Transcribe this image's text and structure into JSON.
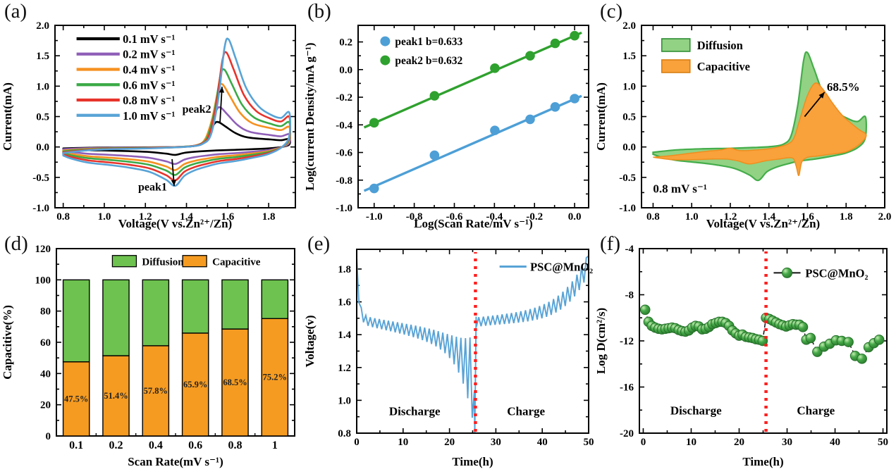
{
  "figure": {
    "background": "#ffffff",
    "description": "Six-panel electrochemistry figure"
  },
  "chart_data": [
    {
      "panel_label": "(a)",
      "type": "line",
      "subtype": "cyclic-voltammetry",
      "xlabel": "Voltage(V vs.Zn²⁺/Zn)",
      "ylabel": "Current(mA)",
      "xlim": [
        0.76,
        1.93
      ],
      "ylim": [
        -1.0,
        2.0
      ],
      "xticks": {
        "values": [
          0.8,
          1.0,
          1.2,
          1.4,
          1.6,
          1.8
        ],
        "labels": [
          "0.8",
          "1.0",
          "1.2",
          "1.4",
          "1.6",
          "1.8"
        ]
      },
      "yticks": {
        "values": [
          -1.0,
          -0.5,
          0.0,
          0.5,
          1.0,
          1.5,
          2.0
        ],
        "labels": [
          "-1.0",
          "-0.5",
          "0.0",
          "0.5",
          "1.0",
          "1.5",
          "2.0"
        ]
      },
      "series": [
        {
          "label": "0.1 mV s⁻¹",
          "color": "#000000",
          "anodic_peak_mA": 0.41,
          "cathodic_peak_mA": -0.13,
          "peak_voltage": 1.555
        },
        {
          "label": "0.2 mV s⁻¹",
          "color": "#8f5fb8",
          "anodic_peak_mA": 0.65,
          "cathodic_peak_mA": -0.28,
          "peak_voltage": 1.565
        },
        {
          "label": "0.4 mV s⁻¹",
          "color": "#f59120",
          "anodic_peak_mA": 1.03,
          "cathodic_peak_mA": -0.38,
          "peak_voltage": 1.575
        },
        {
          "label": "0.6 mV s⁻¹",
          "color": "#3aaa46",
          "anodic_peak_mA": 1.27,
          "cathodic_peak_mA": -0.46,
          "peak_voltage": 1.585
        },
        {
          "label": "0.8 mV s⁻¹",
          "color": "#e7332b",
          "anodic_peak_mA": 1.55,
          "cathodic_peak_mA": -0.55,
          "peak_voltage": 1.595
        },
        {
          "label": "1.0 mV s⁻¹",
          "color": "#58a3d6",
          "anodic_peak_mA": 1.77,
          "cathodic_peak_mA": -0.64,
          "peak_voltage": 1.605
        }
      ],
      "annotations": [
        {
          "text": "peak2",
          "x": 1.45,
          "y": 0.62
        },
        {
          "text": "peak1",
          "x": 1.235,
          "y": -0.66
        }
      ]
    },
    {
      "panel_label": "(b)",
      "type": "scatter",
      "xlabel": "Log(Scan Rate/mV s⁻¹)",
      "ylabel": "Log(current Density/mA g⁻¹)",
      "xlim": [
        -1.08,
        0.07
      ],
      "ylim": [
        -1.0,
        0.32
      ],
      "xticks": {
        "values": [
          -1.0,
          -0.8,
          -0.6,
          -0.4,
          -0.2,
          0.0
        ],
        "labels": [
          "-1.0",
          "-0.8",
          "-0.6",
          "-0.4",
          "-0.2",
          "0.0"
        ]
      },
      "yticks": {
        "values": [
          -1.0,
          -0.8,
          -0.6,
          -0.4,
          -0.2,
          0.0,
          0.2
        ],
        "labels": [
          "-1.0",
          "-0.8",
          "-0.6",
          "-0.4",
          "-0.2",
          "0.0",
          "0.2"
        ]
      },
      "series": [
        {
          "label": "peak1 b=0.633",
          "color": "#4d9fd6",
          "x": [
            -1.0,
            -0.699,
            -0.398,
            -0.222,
            -0.097,
            0.0
          ],
          "y": [
            -0.86,
            -0.62,
            -0.44,
            -0.36,
            -0.27,
            -0.21
          ],
          "fit": {
            "slope": 0.633,
            "intercept": -0.213
          }
        },
        {
          "label": "peak2 b=0.632",
          "color": "#2fa12e",
          "x": [
            -1.0,
            -0.699,
            -0.398,
            -0.222,
            -0.097,
            0.0
          ],
          "y": [
            -0.385,
            -0.19,
            0.01,
            0.1,
            0.19,
            0.245
          ],
          "fit": {
            "slope": 0.632,
            "intercept": 0.245
          }
        }
      ]
    },
    {
      "panel_label": "(c)",
      "type": "area",
      "subtype": "capacitive-contribution-cv",
      "xlabel": "Voltage(V vs.Zn²⁺/Zn)",
      "ylabel": "Current(mA)",
      "xlim": [
        0.74,
        2.0
      ],
      "ylim": [
        -1.0,
        2.0
      ],
      "xticks": {
        "values": [
          0.8,
          1.0,
          1.2,
          1.4,
          1.6,
          1.8,
          2.0
        ],
        "labels": [
          "0.8",
          "1.0",
          "1.2",
          "1.4",
          "1.6",
          "1.8",
          "2.0"
        ]
      },
      "yticks": {
        "values": [
          -1.0,
          -0.5,
          0.0,
          0.5,
          1.0,
          1.5,
          2.0
        ],
        "labels": [
          "-1.0",
          "-0.5",
          "0.0",
          "0.5",
          "1.0",
          "1.5",
          "2.0"
        ]
      },
      "legend": [
        {
          "label": "Diffusion",
          "fill": "#92d284",
          "stroke": "#2f8f35"
        },
        {
          "label": "Capacitive",
          "fill": "#f9a13b",
          "stroke": "#d97f12"
        }
      ],
      "scan_rate_label": "0.8 mV s⁻¹",
      "annotation": {
        "text": "68.5%",
        "x": 1.7,
        "y": 0.98
      },
      "total_anodic_peak_mA": 1.55,
      "total_cathodic_peak_mA": -0.55,
      "capacitive_anodic_peak_mA": 1.05
    },
    {
      "panel_label": "(d)",
      "type": "bar",
      "subtype": "stacked-percent",
      "xlabel": "Scan Rate(mV s⁻¹)",
      "ylabel": "Capacitive(%)",
      "ylim": [
        0,
        120
      ],
      "yticks": {
        "values": [
          0,
          20,
          40,
          60,
          80,
          100,
          120
        ],
        "labels": [
          "0",
          "20",
          "40",
          "60",
          "80",
          "100",
          "120"
        ]
      },
      "categories": [
        "0.1",
        "0.2",
        "0.4",
        "0.6",
        "0.8",
        "1"
      ],
      "series": [
        {
          "name": "Capacitive",
          "color": "#f59b21",
          "values": [
            47.5,
            51.4,
            57.8,
            65.9,
            68.5,
            75.2
          ]
        },
        {
          "name": "Diffusion",
          "color": "#6ec24f",
          "values": [
            52.5,
            48.6,
            42.2,
            34.1,
            31.5,
            24.8
          ]
        }
      ],
      "bar_labels": [
        "47.5%",
        "51.4%",
        "57.8%",
        "65.9%",
        "68.5%",
        "75.2%"
      ],
      "legend": [
        {
          "label": "Diffusion",
          "color": "#6ec24f"
        },
        {
          "label": "Capacitive",
          "color": "#f59b21"
        }
      ]
    },
    {
      "panel_label": "(e)",
      "type": "line",
      "subtype": "GITT-voltage-profile",
      "xlabel": "Time(h)",
      "ylabel": "Voltage(v)",
      "xlim": [
        0,
        50
      ],
      "ylim": [
        0.8,
        1.92
      ],
      "xticks": {
        "values": [
          0,
          10,
          20,
          30,
          40,
          50
        ],
        "labels": [
          "0",
          "10",
          "20",
          "30",
          "40",
          "50"
        ]
      },
      "yticks": {
        "values": [
          0.8,
          1.0,
          1.2,
          1.4,
          1.6,
          1.8
        ],
        "labels": [
          "0.8",
          "1.0",
          "1.2",
          "1.4",
          "1.6",
          "1.8"
        ]
      },
      "legend_label": "PSC@MnO₂",
      "line_color": "#58a3d6",
      "divider": {
        "x": 25.6,
        "color": "#ff1f1f"
      },
      "region_labels": [
        {
          "text": "Discharge",
          "x": 12.5,
          "y": 0.935
        },
        {
          "text": "Charge",
          "x": 36.5,
          "y": 0.935
        }
      ],
      "gitt": {
        "discharge": {
          "t_start": 0,
          "t_end": 25.4,
          "v_start": 1.87,
          "v_end": 0.8,
          "pulses": 26
        },
        "charge": {
          "t_start": 25.8,
          "t_end": 50,
          "v_start": 1.46,
          "v_end": 1.9,
          "pulses": 24
        }
      }
    },
    {
      "panel_label": "(f)",
      "type": "scatter",
      "subtype": "diffusion-coefficient",
      "xlabel": "Time(h)",
      "ylabel": "Log D(cm²/s)",
      "xlim": [
        -0.8,
        50.8
      ],
      "ylim": [
        -20,
        -4
      ],
      "xticks": {
        "values": [
          0,
          10,
          20,
          30,
          40,
          50
        ],
        "labels": [
          "0",
          "10",
          "20",
          "30",
          "40",
          "50"
        ]
      },
      "yticks": {
        "values": [
          -4,
          -8,
          -12,
          -16,
          -20
        ],
        "labels": [
          "-4",
          "-8",
          "-12",
          "-16",
          "-20"
        ]
      },
      "legend_label": "PSC@MnO₂",
      "marker_color": "#3fa23f",
      "divider": {
        "x": 25.6,
        "color": "#ff1f1f"
      },
      "region_labels": [
        {
          "text": "Discharge",
          "x": 11,
          "y": -18
        },
        {
          "text": "Charge",
          "x": 36,
          "y": -18
        }
      ],
      "points": [
        [
          0.4,
          -9.3
        ],
        [
          1.1,
          -10.35
        ],
        [
          1.8,
          -10.7
        ],
        [
          2.5,
          -10.85
        ],
        [
          3.2,
          -10.95
        ],
        [
          3.9,
          -11.0
        ],
        [
          4.6,
          -10.95
        ],
        [
          5.3,
          -10.9
        ],
        [
          6.0,
          -10.85
        ],
        [
          6.7,
          -10.9
        ],
        [
          7.4,
          -11.05
        ],
        [
          8.1,
          -11.15
        ],
        [
          8.8,
          -11.2
        ],
        [
          9.5,
          -11.1
        ],
        [
          10.2,
          -10.85
        ],
        [
          10.9,
          -10.7
        ],
        [
          11.6,
          -10.75
        ],
        [
          12.3,
          -11.0
        ],
        [
          13.0,
          -10.95
        ],
        [
          13.7,
          -10.8
        ],
        [
          14.4,
          -10.55
        ],
        [
          15.1,
          -10.45
        ],
        [
          15.8,
          -10.35
        ],
        [
          16.5,
          -10.35
        ],
        [
          17.2,
          -10.45
        ],
        [
          17.9,
          -10.7
        ],
        [
          18.6,
          -11.1
        ],
        [
          19.3,
          -11.35
        ],
        [
          20.0,
          -11.55
        ],
        [
          20.7,
          -11.45
        ],
        [
          21.4,
          -11.65
        ],
        [
          22.1,
          -11.7
        ],
        [
          22.8,
          -11.75
        ],
        [
          23.5,
          -11.85
        ],
        [
          24.2,
          -11.9
        ],
        [
          24.9,
          -12.0
        ],
        [
          25.6,
          -10.0
        ],
        [
          26.3,
          -10.1
        ],
        [
          27.0,
          -10.25
        ],
        [
          27.7,
          -10.4
        ],
        [
          28.4,
          -10.55
        ],
        [
          29.1,
          -10.65
        ],
        [
          29.8,
          -10.75
        ],
        [
          30.5,
          -10.65
        ],
        [
          31.2,
          -10.55
        ],
        [
          31.9,
          -10.6
        ],
        [
          32.6,
          -10.6
        ],
        [
          33.3,
          -10.8
        ],
        [
          34.0,
          -11.9
        ],
        [
          34.9,
          -11.75
        ],
        [
          36.3,
          -12.95
        ],
        [
          37.7,
          -12.5
        ],
        [
          38.9,
          -12.25
        ],
        [
          40.2,
          -11.95
        ],
        [
          41.4,
          -12.0
        ],
        [
          42.8,
          -12.1
        ],
        [
          44.2,
          -13.3
        ],
        [
          45.6,
          -13.55
        ],
        [
          47.0,
          -12.55
        ],
        [
          48.1,
          -12.2
        ],
        [
          49.2,
          -11.9
        ]
      ]
    }
  ]
}
